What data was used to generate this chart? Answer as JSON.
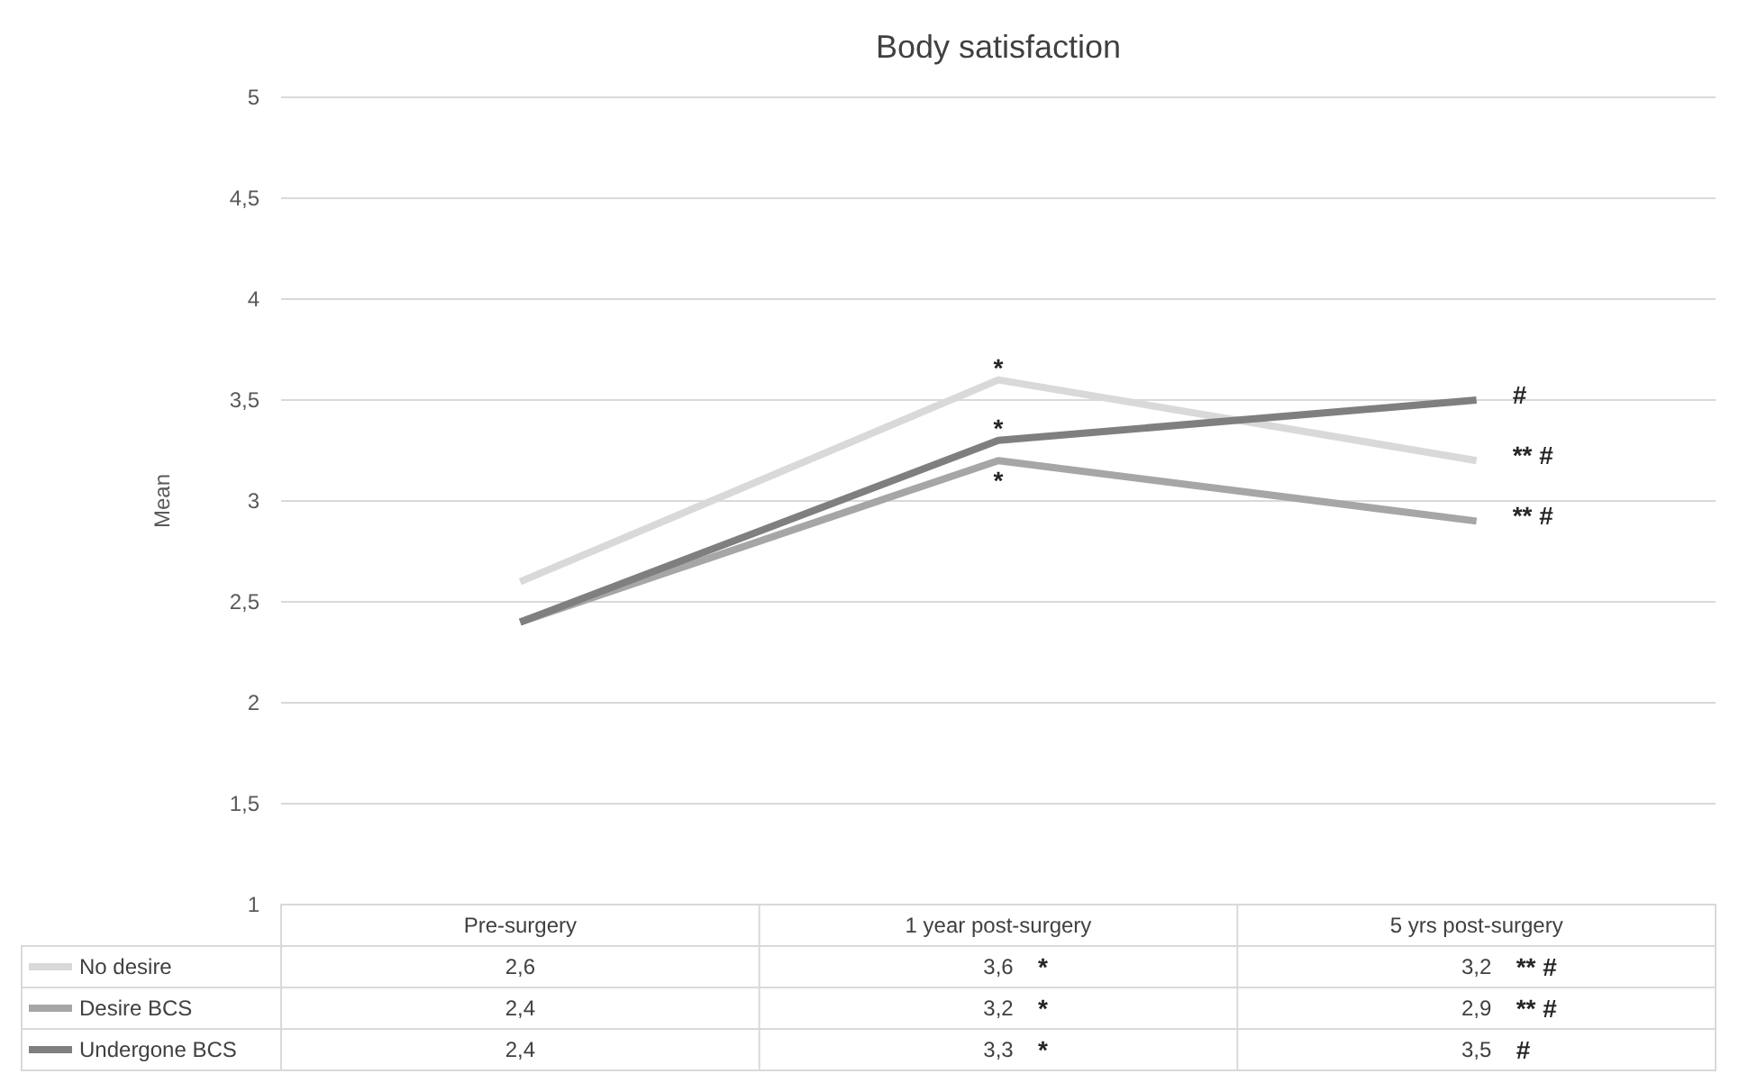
{
  "chart_data": {
    "type": "line",
    "title": "Body satisfaction",
    "ylabel": "Mean",
    "categories": [
      "Pre-surgery",
      "1 year post-surgery",
      "5 yrs post-surgery"
    ],
    "series": [
      {
        "name": "No desire",
        "color": "#d9d9d9",
        "values": [
          2.6,
          3.6,
          3.2
        ],
        "value_labels": [
          "2,6",
          "3,6",
          "3,2"
        ]
      },
      {
        "name": "Desire BCS",
        "color": "#a6a6a6",
        "values": [
          2.4,
          3.2,
          2.9
        ],
        "value_labels": [
          "2,4",
          "3,2",
          "2,9"
        ]
      },
      {
        "name": "Undergone BCS",
        "color": "#7f7f7f",
        "values": [
          2.4,
          3.3,
          3.5
        ],
        "value_labels": [
          "2,4",
          "3,3",
          "3,5"
        ]
      }
    ],
    "ylim": [
      1,
      5
    ],
    "yticks": [
      1,
      {
        "value": 1.5,
        "label": "1,5"
      },
      2,
      {
        "value": 2.5,
        "label": "2,5"
      },
      3,
      {
        "value": 3.5,
        "label": "3,5"
      },
      4,
      {
        "value": 4.5,
        "label": "4,5"
      },
      5
    ],
    "grid": "y",
    "legend": "bottom",
    "marker": "none",
    "line_style": "solid",
    "annotations": [
      {
        "text": "*",
        "x": "1 year post-surgery",
        "y": 3.6
      },
      {
        "text": "*",
        "x": "1 year post-surgery",
        "y": 3.2
      },
      {
        "text": "*",
        "x": "1 year post-surgery",
        "y": 3.3
      },
      {
        "text": "** #",
        "x": "5 yrs post-surgery",
        "y": 3.2
      },
      {
        "text": "** #",
        "x": "5 yrs post-surgery",
        "y": 2.9
      },
      {
        "text": "#",
        "x": "5 yrs post-surgery",
        "y": 3.5
      }
    ]
  }
}
